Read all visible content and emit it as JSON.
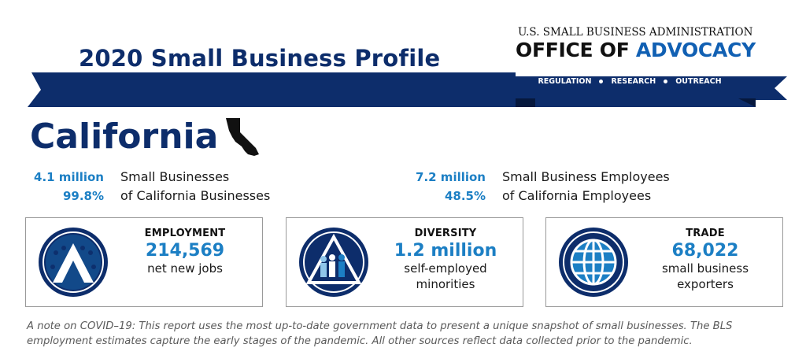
{
  "header": {
    "title": "2020 Small Business Profile",
    "agency_line": "U.S. SMALL BUSINESS ADMINISTRATION",
    "office_prefix": "OFFICE OF ",
    "office_highlight": "ADVOCACY",
    "tagline": [
      "REGULATION",
      "RESEARCH",
      "OUTREACH"
    ]
  },
  "state": {
    "name": "California",
    "icon": "california-map-icon"
  },
  "stats": {
    "small_businesses_value": "4.1 million",
    "small_businesses_label": "Small Businesses",
    "share_businesses_value": "99.8%",
    "share_businesses_label": "of California Businesses",
    "employees_value": "7.2 million",
    "employees_label": "Small Business Employees",
    "share_employees_value": "48.5%",
    "share_employees_label": "of California Employees"
  },
  "cards": {
    "employment": {
      "label": "EMPLOYMENT",
      "value": "214,569",
      "sub1": "net new jobs",
      "icon": "employment-people-icon"
    },
    "diversity": {
      "label": "DIVERSITY",
      "value": "1.2 million",
      "sub1": "self-employed",
      "sub2": "minorities",
      "icon": "diversity-people-icon"
    },
    "trade": {
      "label": "TRADE",
      "value": "68,022",
      "sub1": "small business",
      "sub2": "exporters",
      "icon": "globe-icon"
    }
  },
  "note": "A note on COVID–19: This report uses the most up-to-date government data to present a unique snapshot of small businesses. The BLS employment estimates capture the early stages of the pandemic. All other sources reflect data collected prior to the pandemic.",
  "colors": {
    "navy": "#0d2d6b",
    "accent": "#1c7fc4",
    "advocacy": "#1160b3"
  }
}
